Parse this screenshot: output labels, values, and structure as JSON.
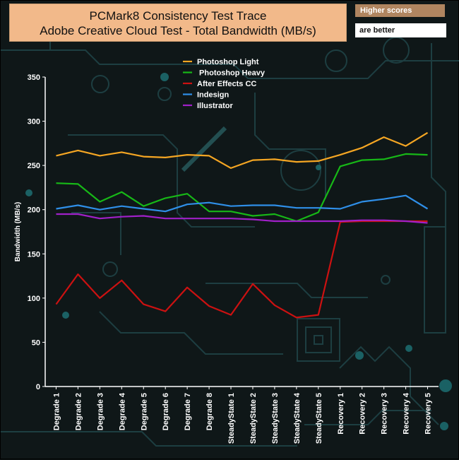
{
  "header": {
    "title_line1": "PCMark8 Consistency Test Trace",
    "title_line2": "Adobe Creative Cloud Test - Total Bandwidth (MB/s)",
    "note_line1": "Higher scores",
    "note_line2": "are better"
  },
  "chart_data": {
    "type": "line",
    "title": "PCMark8 Consistency Test Trace - Adobe Creative Cloud Test - Total Bandwidth (MB/s)",
    "xlabel": "",
    "ylabel": "Bandwidth (MB/s)",
    "ylim": [
      0,
      350
    ],
    "yticks": [
      0,
      50,
      100,
      150,
      200,
      250,
      300,
      350
    ],
    "grid": false,
    "legend_position": "top-center",
    "categories": [
      "Degrade 1",
      "Degrade 2",
      "Degrade 3",
      "Degrade 4",
      "Degrade 5",
      "Degrade 6",
      "Degrade 7",
      "Degrade 8",
      "SteadyState 1",
      "SteadyState 2",
      "SteadyState 3",
      "SteadyState 4",
      "SteadyState 5",
      "Recovery 1",
      "Recovery 2",
      "Recovery 3",
      "Recovery 4",
      "Recovery 5"
    ],
    "series": [
      {
        "name": "Photoshop Light",
        "color": "#f5a623",
        "values": [
          261,
          267,
          261,
          265,
          260,
          259,
          262,
          261,
          247,
          256,
          257,
          254,
          255,
          262,
          270,
          282,
          272,
          287
        ]
      },
      {
        "name": " Photoshop Heavy",
        "color": "#17b817",
        "values": [
          230,
          229,
          209,
          220,
          204,
          213,
          218,
          198,
          198,
          193,
          195,
          187,
          197,
          249,
          256,
          257,
          263,
          262
        ]
      },
      {
        "name": "After Effects CC",
        "color": "#cc1111",
        "values": [
          93,
          127,
          100,
          120,
          93,
          85,
          112,
          91,
          81,
          116,
          92,
          78,
          81,
          186,
          187,
          187,
          187,
          187
        ]
      },
      {
        "name": "Indesign",
        "color": "#2f8fe8",
        "values": [
          201,
          205,
          200,
          204,
          201,
          198,
          206,
          208,
          204,
          205,
          205,
          202,
          202,
          201,
          209,
          212,
          216,
          201
        ]
      },
      {
        "name": "Illustrator",
        "color": "#a020c8",
        "values": [
          195,
          195,
          190,
          192,
          193,
          190,
          190,
          190,
          190,
          189,
          187,
          187,
          187,
          187,
          188,
          188,
          187,
          185
        ]
      }
    ]
  }
}
